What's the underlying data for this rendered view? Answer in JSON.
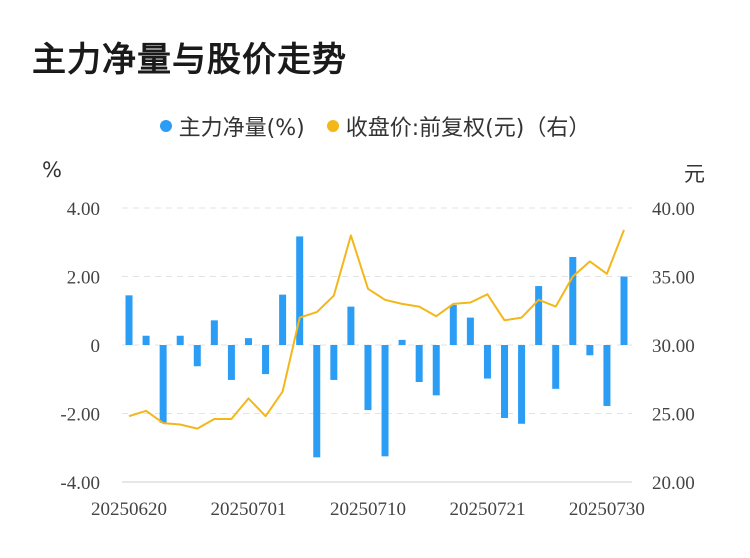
{
  "title": "主力净量与股价走势",
  "legend": [
    {
      "label": "主力净量(%)",
      "color": "#2b9df4"
    },
    {
      "label": "收盘价:前复权(元)（右）",
      "color": "#f4b71a"
    }
  ],
  "units": {
    "left": "%",
    "right": "元"
  },
  "chart_data": {
    "type": "bar+line",
    "x_tick_labels": [
      "20250620",
      "20250701",
      "20250710",
      "20250721",
      "20250730"
    ],
    "left_axis": {
      "ylim": [
        -4,
        4
      ],
      "ticks": [
        "4.00",
        "2.00",
        "0",
        "-2.00",
        "-4.00"
      ]
    },
    "right_axis": {
      "ylim": [
        20,
        40
      ],
      "ticks": [
        "40.00",
        "35.00",
        "30.00",
        "25.00",
        "20.00"
      ]
    },
    "grid": true,
    "series": [
      {
        "type": "bar",
        "axis": "left",
        "color": "#2b9df4",
        "values": [
          1.45,
          0.27,
          -2.27,
          0.27,
          -0.62,
          0.72,
          -1.02,
          0.2,
          -0.85,
          1.47,
          3.17,
          -3.28,
          -1.02,
          1.12,
          -1.9,
          -3.25,
          0.15,
          -1.08,
          -1.47,
          1.17,
          0.8,
          -0.98,
          -2.13,
          -2.3,
          1.72,
          -1.28,
          2.57,
          -0.3,
          -1.78,
          2.0
        ]
      },
      {
        "type": "line",
        "axis": "right",
        "color": "#f4b71a",
        "values": [
          24.8,
          25.2,
          24.3,
          24.2,
          23.9,
          24.6,
          24.6,
          26.1,
          24.8,
          26.6,
          32.0,
          32.4,
          33.6,
          38.0,
          34.1,
          33.3,
          33.0,
          32.8,
          32.1,
          33.0,
          33.1,
          33.7,
          31.8,
          32.0,
          33.3,
          32.8,
          35.0,
          36.1,
          35.2,
          38.4
        ]
      }
    ]
  }
}
